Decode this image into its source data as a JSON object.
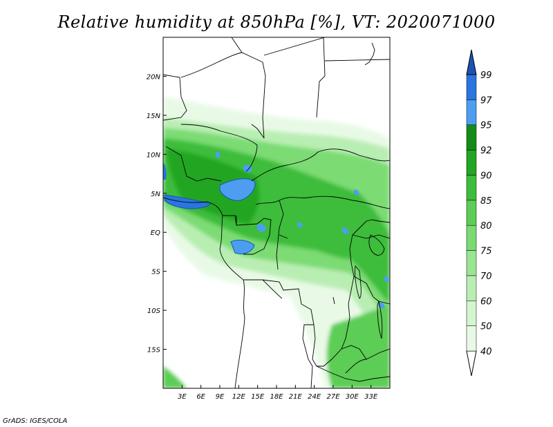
{
  "title": "Relative humidity at 850hPa [%], VT: 2020071000",
  "credit": "GrADS: IGES/COLA",
  "map": {
    "lon_range": [
      0,
      36
    ],
    "lat_range": [
      -20,
      25
    ],
    "lon_ticks": [
      {
        "lon": 3,
        "label": "3E"
      },
      {
        "lon": 6,
        "label": "6E"
      },
      {
        "lon": 9,
        "label": "9E"
      },
      {
        "lon": 12,
        "label": "12E"
      },
      {
        "lon": 15,
        "label": "15E"
      },
      {
        "lon": 18,
        "label": "18E"
      },
      {
        "lon": 21,
        "label": "21E"
      },
      {
        "lon": 24,
        "label": "24E"
      },
      {
        "lon": 27,
        "label": "27E"
      },
      {
        "lon": 30,
        "label": "30E"
      },
      {
        "lon": 33,
        "label": "33E"
      }
    ],
    "lat_ticks": [
      {
        "lat": 20,
        "label": "20N"
      },
      {
        "lat": 15,
        "label": "15N"
      },
      {
        "lat": 10,
        "label": "10N"
      },
      {
        "lat": 5,
        "label": "5N"
      },
      {
        "lat": 0,
        "label": "EQ"
      },
      {
        "lat": -5,
        "label": "5S"
      },
      {
        "lat": -10,
        "label": "10S"
      },
      {
        "lat": -15,
        "label": "15S"
      }
    ]
  },
  "colorbar": {
    "levels": [
      {
        "label": "40",
        "color": "#e8fae6"
      },
      {
        "label": "50",
        "color": "#d3f5cf"
      },
      {
        "label": "60",
        "color": "#b9eeb3"
      },
      {
        "label": "70",
        "color": "#99e592"
      },
      {
        "label": "75",
        "color": "#7bdb73"
      },
      {
        "label": "80",
        "color": "#5ccd55"
      },
      {
        "label": "85",
        "color": "#3dbd3b"
      },
      {
        "label": "90",
        "color": "#23a624"
      },
      {
        "label": "92",
        "color": "#158c17"
      },
      {
        "label": "95",
        "color": "#4d9ef0"
      },
      {
        "label": "97",
        "color": "#2a75de"
      },
      {
        "label": "99",
        "color": "#1b53b5"
      }
    ],
    "below_color": "#ffffff",
    "above_color": "#1b53b5"
  }
}
